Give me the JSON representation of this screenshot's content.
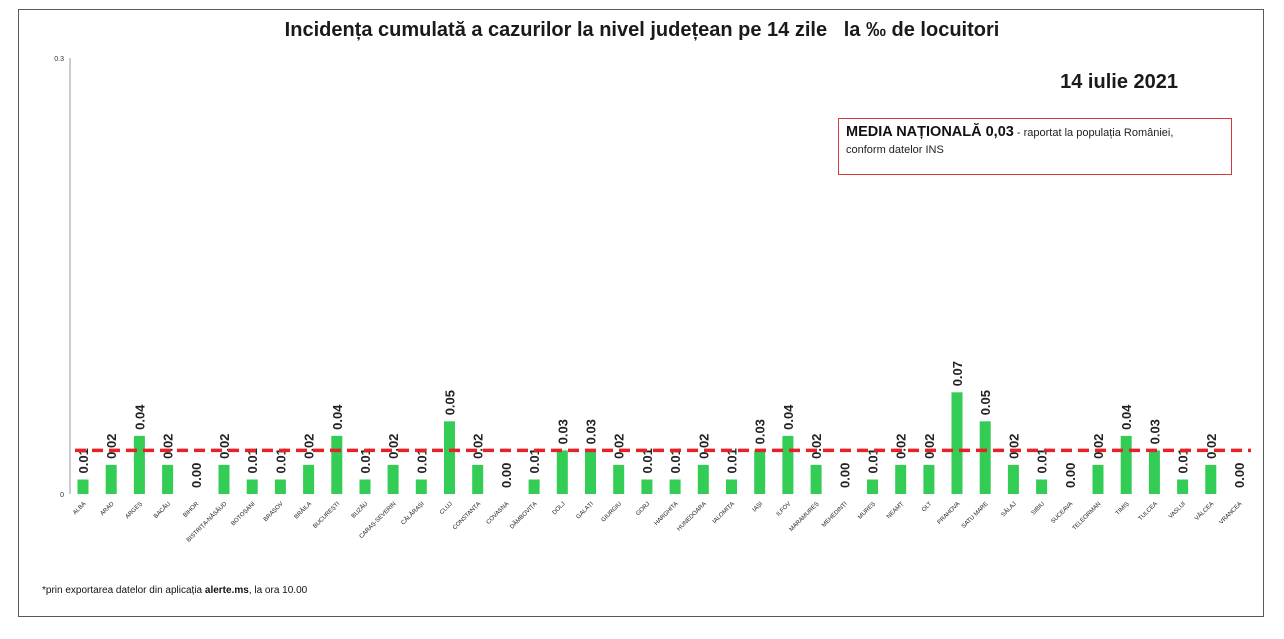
{
  "title": "Incidența cumulată a cazurilor la nivel județean pe 14 zile   la ‰ de locuitori",
  "date": "14 iulie 2021",
  "note": {
    "main": "MEDIA NAȚIONALĂ 0,03",
    "sub": " - raportat la populația României,",
    "line2": "conform datelor INS"
  },
  "footnote": {
    "prefix": "*prin exportarea datelor din aplicația ",
    "bold": "alerte.ms",
    "suffix": ", la ora 10.00"
  },
  "colors": {
    "bar": "#33cc55",
    "mean_line": "#e8202a",
    "axis": "#9a9a9a"
  },
  "chart_data": {
    "type": "bar",
    "title": "Incidența cumulată a cazurilor la nivel județean pe 14 zile   la ‰ de locuitori",
    "ylim": [
      0,
      0.3
    ],
    "yticks": [
      "0",
      "0.3"
    ],
    "reference_line": 0.03,
    "categories": [
      "ALBA",
      "ARAD",
      "ARGEȘ",
      "BACĂU",
      "BIHOR",
      "BISTRIȚA-NĂSĂUD",
      "BOTOȘANI",
      "BRAȘOV",
      "BRĂILA",
      "BUCUREȘTI",
      "BUZĂU",
      "CARAȘ-SEVERIN",
      "CĂLĂRAȘI",
      "CLUJ",
      "CONSTANȚA",
      "COVASNA",
      "DÂMBOVIȚA",
      "DOLJ",
      "GALAȚI",
      "GIURGIU",
      "GORJ",
      "HARGHITA",
      "HUNEDOARA",
      "IALOMIȚA",
      "IAȘI",
      "ILFOV",
      "MARAMUREȘ",
      "MEHEDINȚI",
      "MUREȘ",
      "NEAMȚ",
      "OLT",
      "PRAHOVA",
      "SATU MARE",
      "SĂLAJ",
      "SIBIU",
      "SUCEAVA",
      "TELEORMAN",
      "TIMIȘ",
      "TULCEA",
      "VASLUI",
      "VÂLCEA",
      "VRANCEA"
    ],
    "values": [
      0.01,
      0.02,
      0.04,
      0.02,
      0.0,
      0.02,
      0.01,
      0.01,
      0.02,
      0.04,
      0.01,
      0.02,
      0.01,
      0.05,
      0.02,
      0.0,
      0.01,
      0.03,
      0.03,
      0.02,
      0.01,
      0.01,
      0.02,
      0.01,
      0.03,
      0.04,
      0.02,
      0.0,
      0.01,
      0.02,
      0.02,
      0.07,
      0.05,
      0.02,
      0.01,
      0.0,
      0.02,
      0.04,
      0.03,
      0.01,
      0.02,
      0.0
    ],
    "labels": [
      "0.01",
      "0.02",
      "0.04",
      "0.02",
      "0.00",
      "0.02",
      "0.01",
      "0.01",
      "0.02",
      "0.04",
      "0.01",
      "0.02",
      "0.01",
      "0.05",
      "0.02",
      "0.00",
      "0.01",
      "0.03",
      "0.03",
      "0.02",
      "0.01",
      "0.01",
      "0.02",
      "0.01",
      "0.03",
      "0.04",
      "0.02",
      "0.00",
      "0.01",
      "0.02",
      "0.02",
      "0.07",
      "0.05",
      "0.02",
      "0.01",
      "0.00",
      "0.02",
      "0.04",
      "0.03",
      "0.01",
      "0.02",
      "0.00"
    ]
  }
}
